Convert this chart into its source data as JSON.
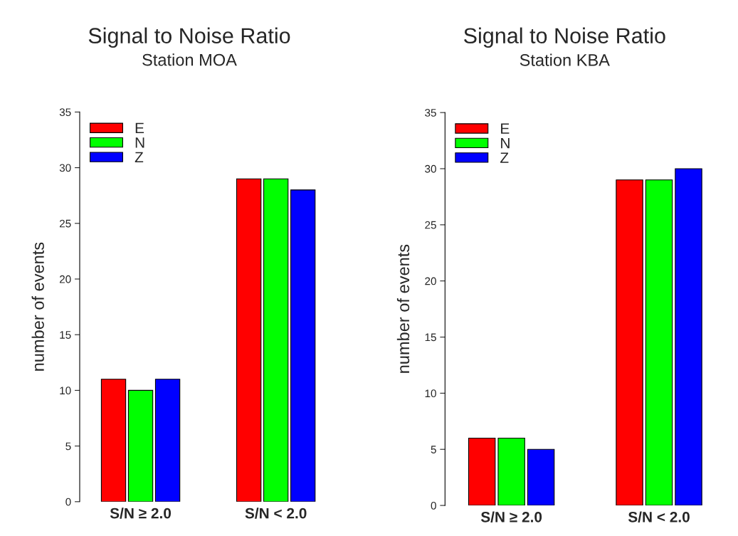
{
  "chart_data": [
    {
      "type": "bar",
      "title": "Signal to Noise Ratio",
      "subtitle": "Station MOA",
      "ylabel": "number of events",
      "categories": [
        "S/N ≥ 2.0",
        "S/N < 2.0"
      ],
      "series": [
        {
          "name": "E",
          "color": "#ff0000",
          "values": [
            11,
            29
          ]
        },
        {
          "name": "N",
          "color": "#00ff00",
          "values": [
            10,
            29
          ]
        },
        {
          "name": "Z",
          "color": "#0000ff",
          "values": [
            11,
            28
          ]
        }
      ],
      "ylim": [
        0,
        35
      ],
      "yticks": [
        0,
        5,
        10,
        15,
        20,
        25,
        30,
        35
      ],
      "grid": false,
      "legend": "top left"
    },
    {
      "type": "bar",
      "title": "Signal to Noise Ratio",
      "subtitle": "Station KBA",
      "ylabel": "number of events",
      "categories": [
        "S/N ≥ 2.0",
        "S/N < 2.0"
      ],
      "series": [
        {
          "name": "E",
          "color": "#ff0000",
          "values": [
            6,
            29
          ]
        },
        {
          "name": "N",
          "color": "#00ff00",
          "values": [
            6,
            29
          ]
        },
        {
          "name": "Z",
          "color": "#0000ff",
          "values": [
            5,
            30
          ]
        }
      ],
      "ylim": [
        0,
        35
      ],
      "yticks": [
        0,
        5,
        10,
        15,
        20,
        25,
        30,
        35
      ],
      "grid": false,
      "legend": "top left"
    }
  ]
}
